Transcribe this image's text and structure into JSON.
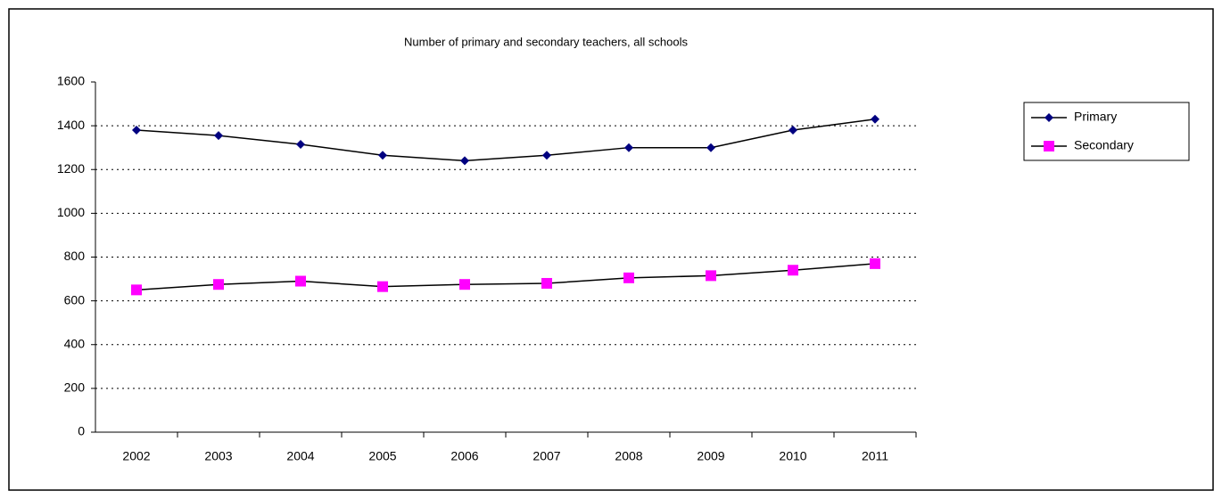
{
  "chart_data": {
    "type": "line",
    "title": "Number of primary and secondary teachers, all schools",
    "categories": [
      "2002",
      "2003",
      "2004",
      "2005",
      "2006",
      "2007",
      "2008",
      "2009",
      "2010",
      "2011"
    ],
    "series": [
      {
        "name": "Primary",
        "color": "#000080",
        "marker": "diamond",
        "values": [
          1380,
          1355,
          1315,
          1265,
          1240,
          1265,
          1300,
          1300,
          1380,
          1430
        ]
      },
      {
        "name": "Secondary",
        "color": "#ff00ff",
        "marker": "square",
        "values": [
          650,
          675,
          690,
          665,
          675,
          680,
          705,
          715,
          740,
          770
        ]
      }
    ],
    "ylim": [
      0,
      1600
    ],
    "yticks": [
      0,
      200,
      400,
      600,
      800,
      1000,
      1200,
      1400,
      1600
    ],
    "grid": true,
    "legend": "right"
  }
}
